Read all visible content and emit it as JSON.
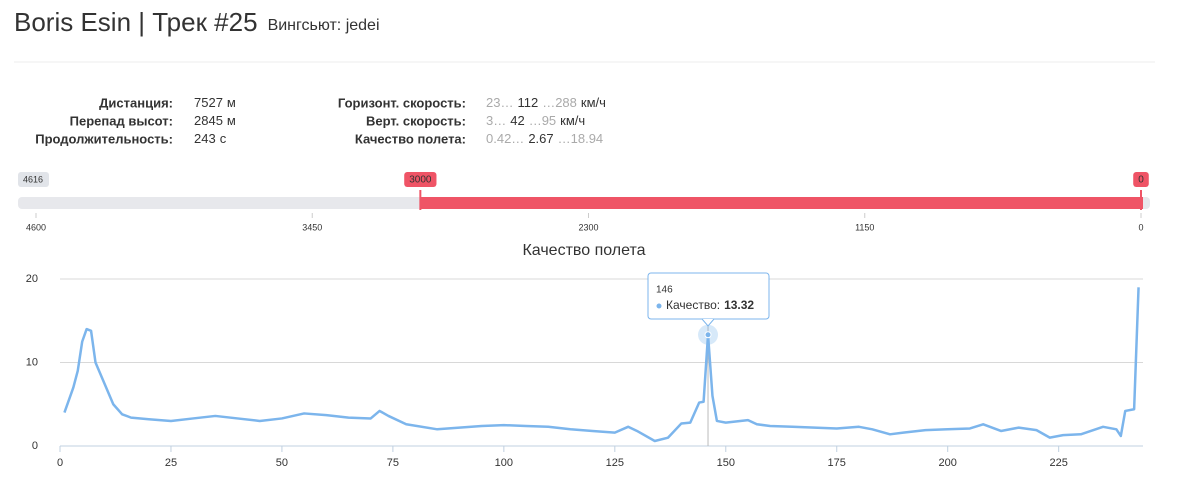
{
  "header": {
    "title": "Boris Esin | Трек #25",
    "subtitle": "Вингсьют: jedei"
  },
  "stats_left": [
    {
      "label": "Дистанция:",
      "value": 7527,
      "unit": "м"
    },
    {
      "label": "Перепад высот:",
      "value": 2845,
      "unit": "м"
    },
    {
      "label": "Продолжительность:",
      "value": 243,
      "unit": "с"
    }
  ],
  "stats_right": [
    {
      "label": "Горизонт. скорость:",
      "min": "23…",
      "avg": 112,
      "max": "…288",
      "unit": "км/ч"
    },
    {
      "label": "Верт. скорость:",
      "min": "3…",
      "avg": 42,
      "max": "…95",
      "unit": "км/ч"
    },
    {
      "label": "Качество полета:",
      "min": "0.42…",
      "avg": 2.67,
      "max": "…18.94"
    }
  ],
  "slider": {
    "max": 4616,
    "from": 3000,
    "to": 0,
    "lim": [
      4600,
      0
    ],
    "ticks": [
      4600,
      3450,
      2300,
      1150,
      0
    ],
    "color": "#ef5466"
  },
  "chart_data": {
    "type": "line",
    "title": "Качество полета",
    "x": [
      1,
      3,
      4,
      5,
      6,
      7,
      8,
      10,
      12,
      14,
      16,
      20,
      25,
      30,
      35,
      40,
      45,
      50,
      55,
      60,
      65,
      70,
      72,
      74,
      78,
      85,
      90,
      95,
      100,
      105,
      110,
      115,
      120,
      125,
      128,
      130,
      134,
      137,
      140,
      142,
      144,
      145,
      146,
      147,
      148,
      150,
      155,
      157,
      160,
      165,
      170,
      175,
      180,
      183,
      187,
      190,
      195,
      200,
      205,
      208,
      212,
      216,
      220,
      223,
      226,
      230,
      235,
      238,
      239,
      240,
      242,
      243
    ],
    "series": [
      {
        "name": "Качество",
        "color": "#7cb5ec",
        "values": [
          4,
          7,
          9,
          12.5,
          14,
          13.8,
          10,
          7.5,
          5,
          3.8,
          3.4,
          3.2,
          3,
          3.3,
          3.6,
          3.3,
          3,
          3.3,
          3.9,
          3.7,
          3.4,
          3.3,
          4.2,
          3.6,
          2.6,
          2,
          2.2,
          2.4,
          2.5,
          2.4,
          2.3,
          2,
          1.8,
          1.6,
          2.3,
          1.8,
          0.6,
          1,
          2.7,
          2.8,
          5.2,
          5.3,
          13.32,
          6,
          3,
          2.8,
          3.1,
          2.6,
          2.4,
          2.3,
          2.2,
          2.1,
          2.3,
          2,
          1.4,
          1.6,
          1.9,
          2,
          2.1,
          2.6,
          1.8,
          2.2,
          1.9,
          1,
          1.3,
          1.4,
          2.3,
          2,
          1.2,
          4.2,
          4.4,
          19
        ]
      }
    ],
    "xlim": [
      0,
      244
    ],
    "ylim": [
      0,
      20
    ],
    "xticks": [
      0,
      25,
      50,
      75,
      100,
      125,
      150,
      175,
      200,
      225
    ],
    "yticks": [
      0,
      10,
      20
    ],
    "grid": true,
    "tooltip": {
      "x": 146,
      "label": "Качество:",
      "value": 13.32
    }
  }
}
